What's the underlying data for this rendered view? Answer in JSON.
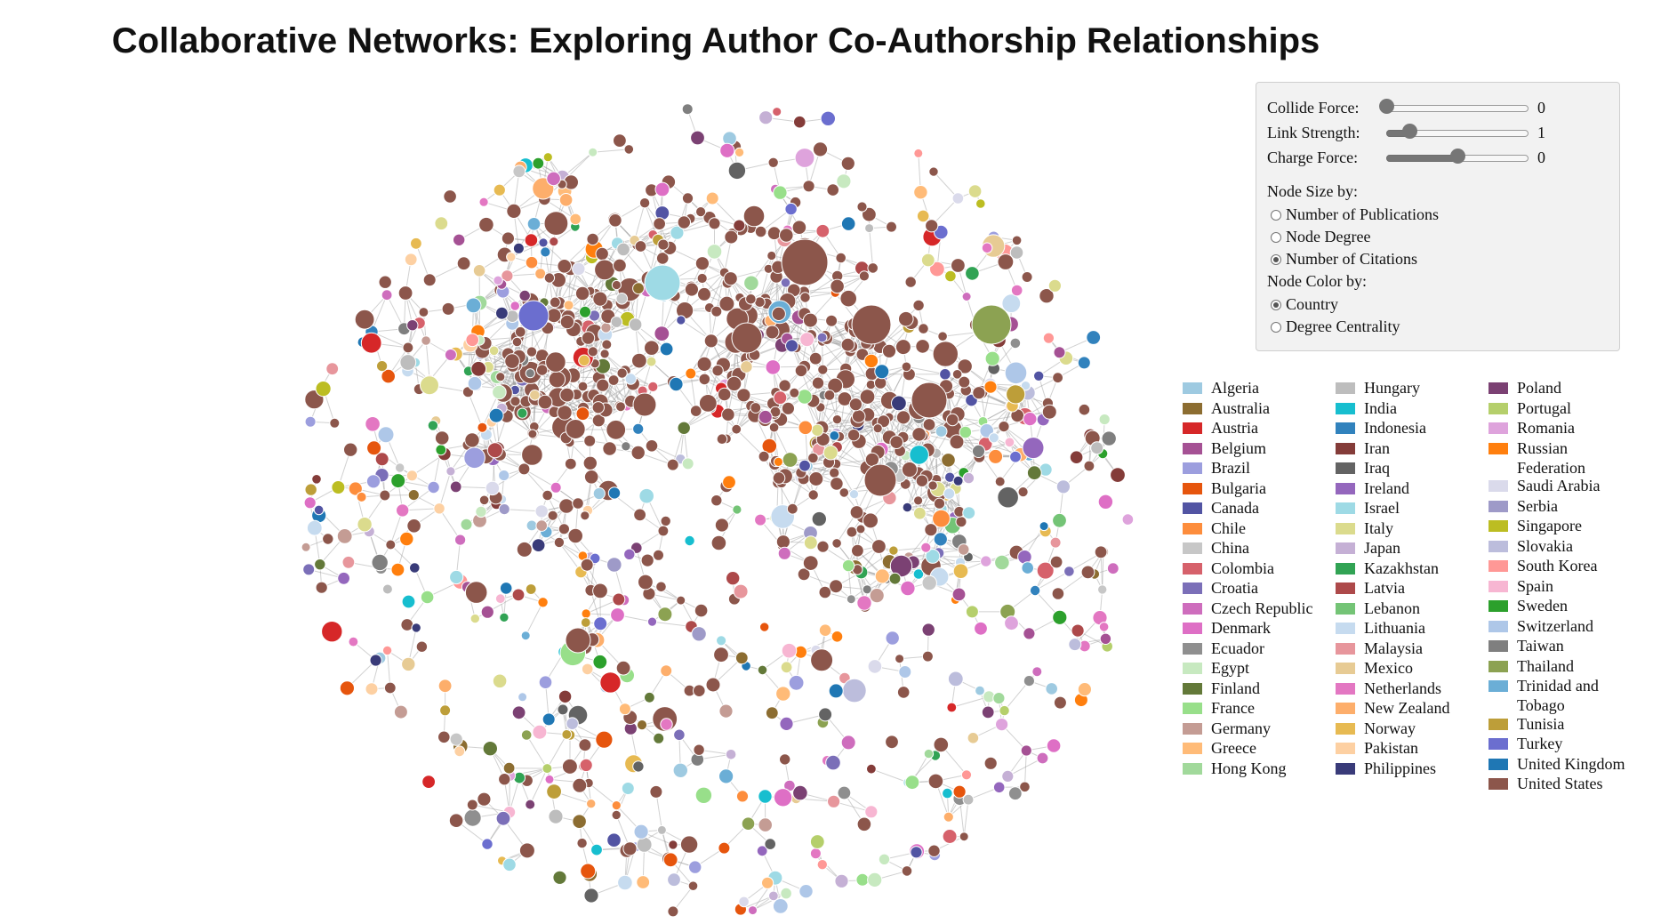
{
  "title": "Collaborative Networks: Exploring Author Co-Authorship Relationships",
  "controls": {
    "sliders": [
      {
        "label": "Collide Force:",
        "value": "0",
        "position": 0.0
      },
      {
        "label": "Link Strength:",
        "value": "1",
        "position": 0.16
      },
      {
        "label": "Charge Force:",
        "value": "0",
        "position": 0.5
      }
    ],
    "size_group": {
      "title": "Node Size by:",
      "options": [
        {
          "label": "Number of Publications",
          "checked": false
        },
        {
          "label": "Node Degree",
          "checked": false
        },
        {
          "label": "Number of Citations",
          "checked": true
        }
      ]
    },
    "color_group": {
      "title": "Node Color by:",
      "options": [
        {
          "label": "Country",
          "checked": true
        },
        {
          "label": "Degree Centrality",
          "checked": false
        }
      ]
    }
  },
  "legend": [
    {
      "label": "Algeria",
      "color": "#9ecae1"
    },
    {
      "label": "Australia",
      "color": "#8c6d31"
    },
    {
      "label": "Austria",
      "color": "#d62728"
    },
    {
      "label": "Belgium",
      "color": "#a55194"
    },
    {
      "label": "Brazil",
      "color": "#9c9ede"
    },
    {
      "label": "Bulgaria",
      "color": "#e6550d"
    },
    {
      "label": "Canada",
      "color": "#5254a3"
    },
    {
      "label": "Chile",
      "color": "#fd8d3c"
    },
    {
      "label": "China",
      "color": "#c7c7c7"
    },
    {
      "label": "Colombia",
      "color": "#d6616b"
    },
    {
      "label": "Croatia",
      "color": "#7b6fb8"
    },
    {
      "label": "Czech Republic",
      "color": "#ce6dbd"
    },
    {
      "label": "Denmark",
      "color": "#de6fc5"
    },
    {
      "label": "Ecuador",
      "color": "#8f8f8f"
    },
    {
      "label": "Egypt",
      "color": "#c7e9c0"
    },
    {
      "label": "Finland",
      "color": "#637939"
    },
    {
      "label": "France",
      "color": "#98df8a"
    },
    {
      "label": "Germany",
      "color": "#c49c94"
    },
    {
      "label": "Greece",
      "color": "#ffbb78"
    },
    {
      "label": "Hong Kong",
      "color": "#a1d99b"
    },
    {
      "label": "Hungary",
      "color": "#bdbdbd"
    },
    {
      "label": "India",
      "color": "#17becf"
    },
    {
      "label": "Indonesia",
      "color": "#3182bd"
    },
    {
      "label": "Iran",
      "color": "#843c39"
    },
    {
      "label": "Iraq",
      "color": "#636363"
    },
    {
      "label": "Ireland",
      "color": "#9467bd"
    },
    {
      "label": "Israel",
      "color": "#9edae5"
    },
    {
      "label": "Italy",
      "color": "#dbdb8d"
    },
    {
      "label": "Japan",
      "color": "#c5b0d5"
    },
    {
      "label": "Kazakhstan",
      "color": "#31a354"
    },
    {
      "label": "Latvia",
      "color": "#ad494a"
    },
    {
      "label": "Lebanon",
      "color": "#74c476"
    },
    {
      "label": "Lithuania",
      "color": "#c6dbef"
    },
    {
      "label": "Malaysia",
      "color": "#e7969c"
    },
    {
      "label": "Mexico",
      "color": "#e7cb94"
    },
    {
      "label": "Netherlands",
      "color": "#e377c2"
    },
    {
      "label": "New Zealand",
      "color": "#fdae6b"
    },
    {
      "label": "Norway",
      "color": "#e7ba52"
    },
    {
      "label": "Pakistan",
      "color": "#fdd0a2"
    },
    {
      "label": "Philippines",
      "color": "#393b79"
    },
    {
      "label": "Poland",
      "color": "#7b4173"
    },
    {
      "label": "Portugal",
      "color": "#b5cf6b"
    },
    {
      "label": "Romania",
      "color": "#dea3dc"
    },
    {
      "label": "Russian Federation",
      "color": "#ff7f0e"
    },
    {
      "label": "Saudi Arabia",
      "color": "#dadaeb"
    },
    {
      "label": "Serbia",
      "color": "#9e9ac8"
    },
    {
      "label": "Singapore",
      "color": "#bcbd22"
    },
    {
      "label": "Slovakia",
      "color": "#bcbddc"
    },
    {
      "label": "South Korea",
      "color": "#ff9896"
    },
    {
      "label": "Spain",
      "color": "#f7b6d2"
    },
    {
      "label": "Sweden",
      "color": "#2ca02c"
    },
    {
      "label": "Switzerland",
      "color": "#aec7e8"
    },
    {
      "label": "Taiwan",
      "color": "#7f7f7f"
    },
    {
      "label": "Thailand",
      "color": "#8ca252"
    },
    {
      "label": "Trinidad and Tobago",
      "color": "#6baed6"
    },
    {
      "label": "Tunisia",
      "color": "#bd9e39"
    },
    {
      "label": "Turkey",
      "color": "#6b6ecf"
    },
    {
      "label": "United Kingdom",
      "color": "#1f77b4"
    },
    {
      "label": "United States",
      "color": "#8c564b"
    }
  ]
}
